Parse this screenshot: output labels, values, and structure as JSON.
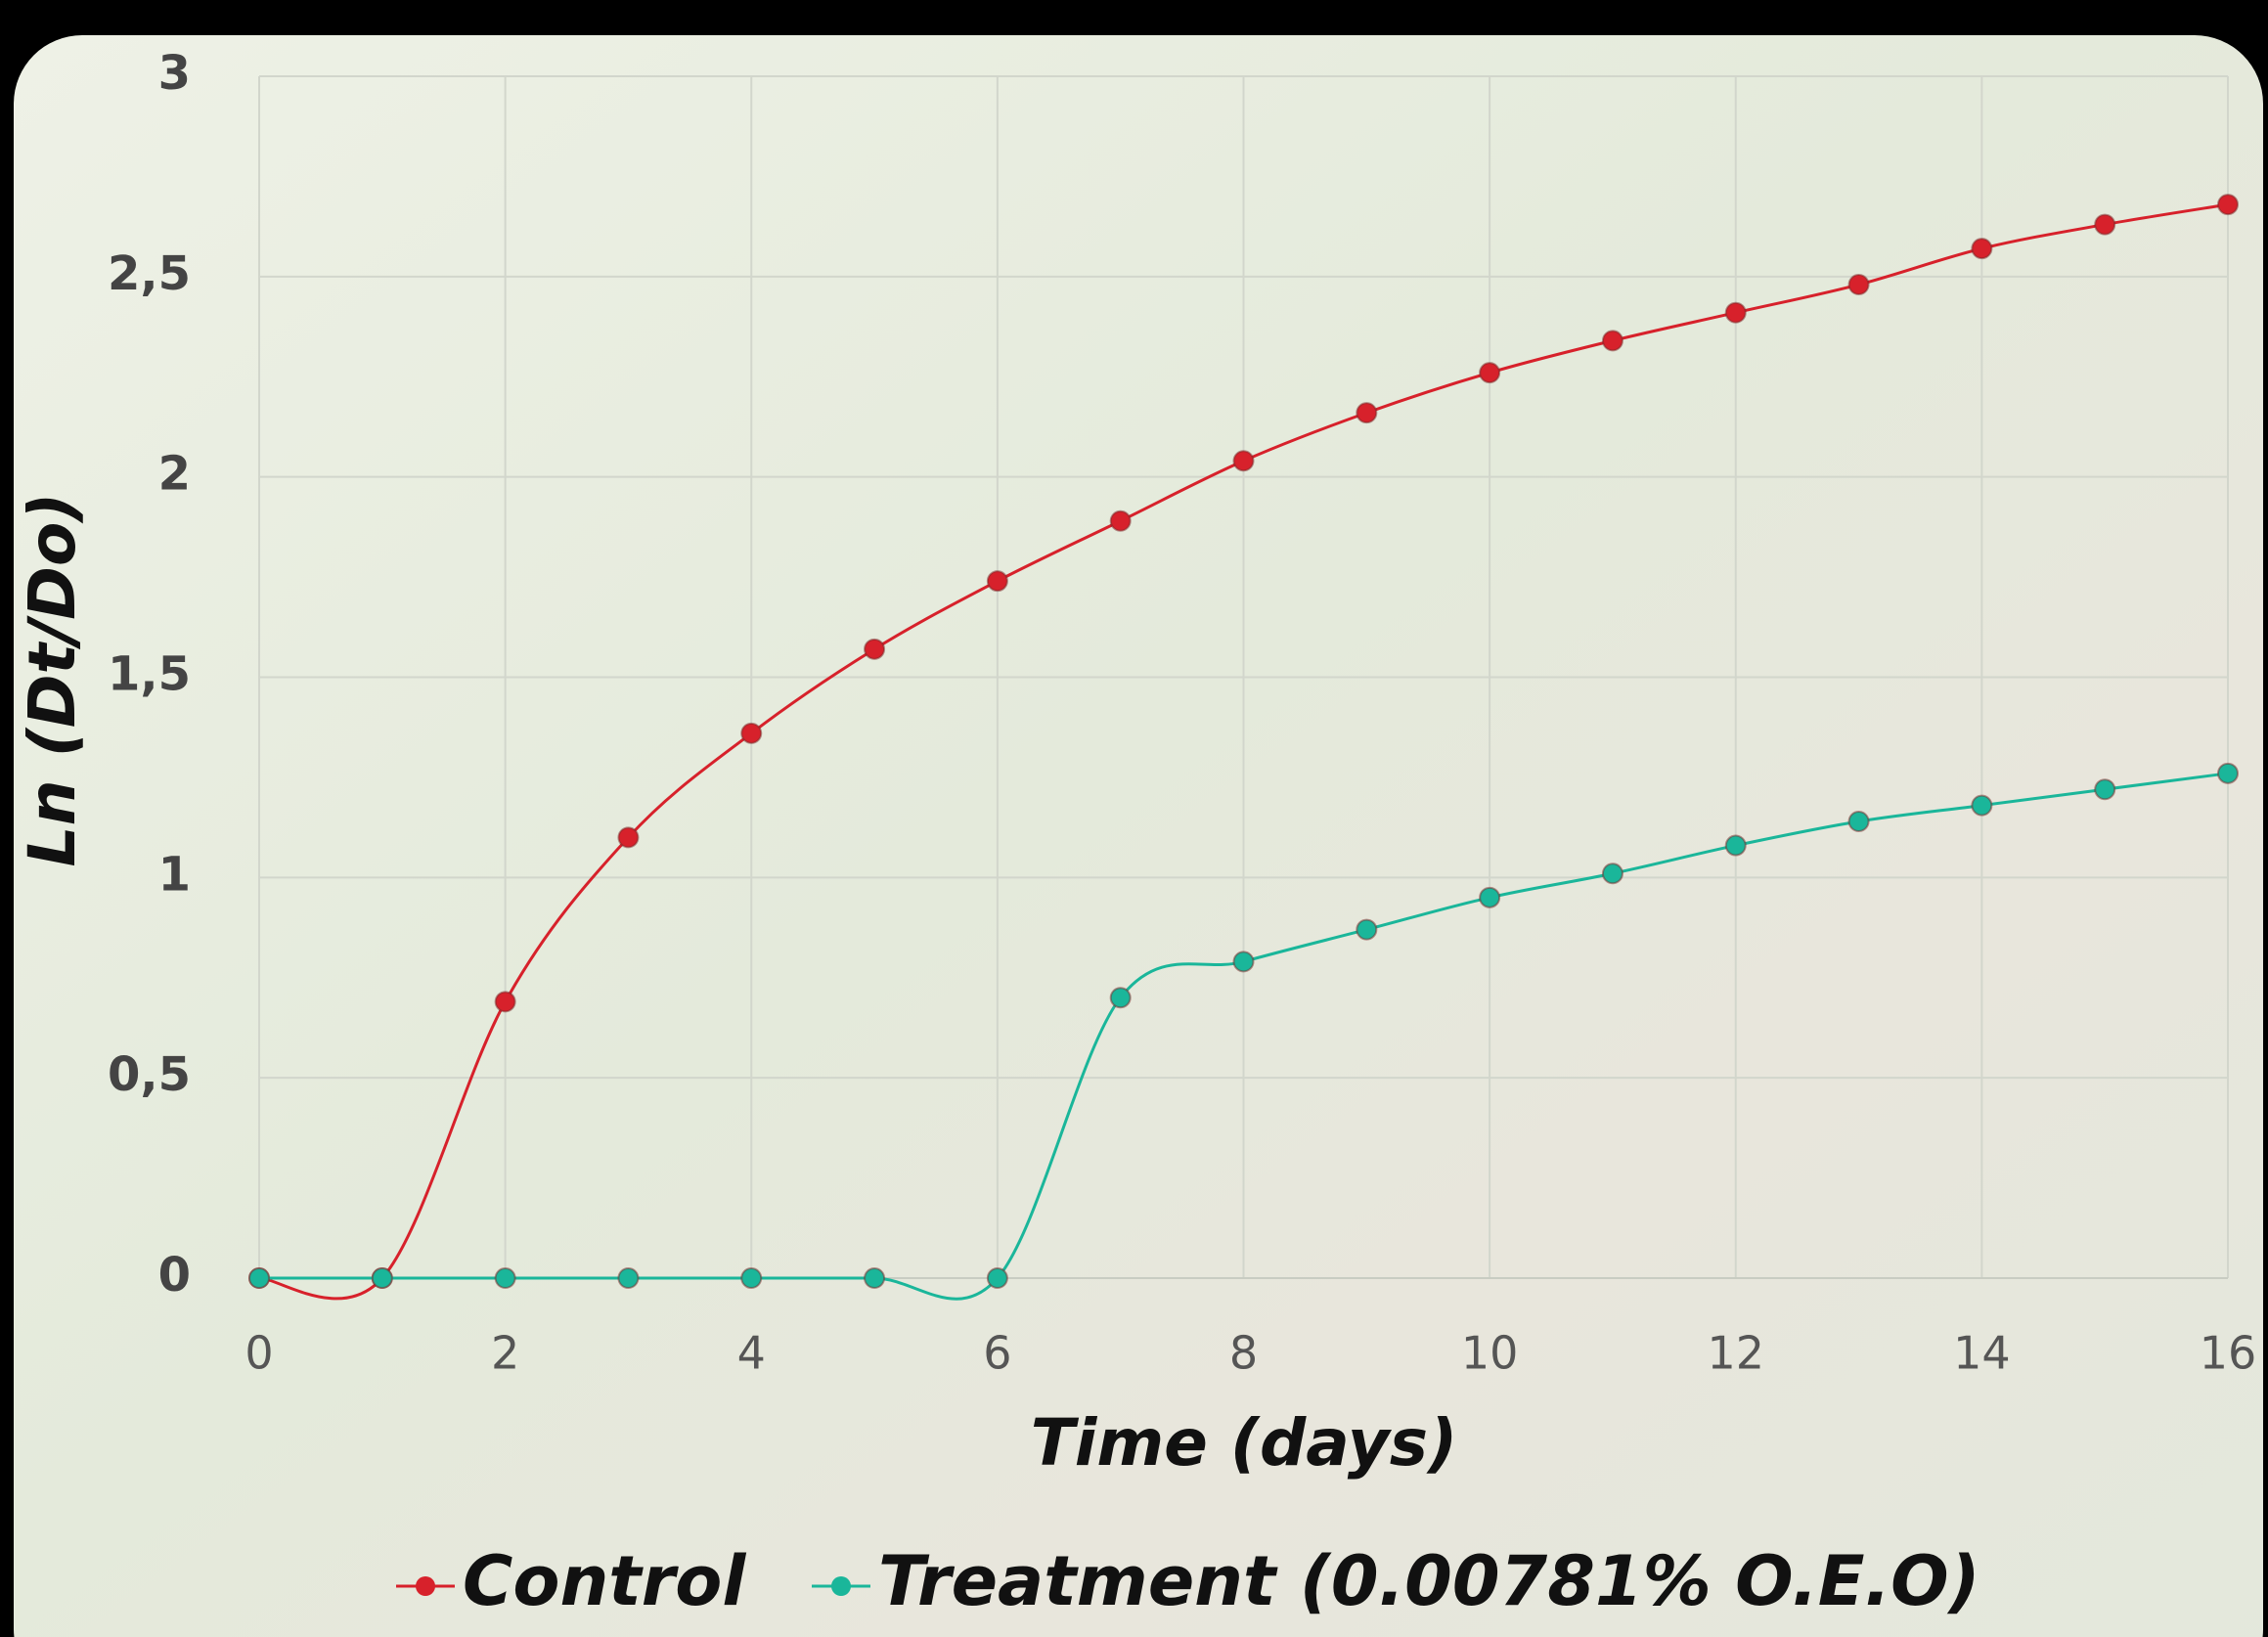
{
  "chart_data": {
    "type": "line",
    "x_label": "Time (days)",
    "y_label": "Ln (Dt/Do)",
    "x": [
      0,
      1,
      2,
      3,
      4,
      5,
      6,
      7,
      8,
      9,
      10,
      11,
      12,
      13,
      14,
      15,
      16
    ],
    "series": [
      {
        "name": "Control",
        "color": "#d7212b",
        "values": [
          0,
          0,
          0.69,
          1.1,
          1.36,
          1.57,
          1.74,
          1.89,
          2.04,
          2.16,
          2.26,
          2.34,
          2.41,
          2.48,
          2.57,
          2.63,
          2.68
        ]
      },
      {
        "name": "Treatment (0.00781% O.E.O)",
        "color": "#1ab69a",
        "values": [
          0,
          0,
          0,
          0,
          0,
          0,
          0,
          0.7,
          0.79,
          0.87,
          0.95,
          1.01,
          1.08,
          1.14,
          1.18,
          1.22,
          1.26
        ]
      }
    ],
    "xlim": [
      0,
      16
    ],
    "xticks": [
      0,
      2,
      4,
      6,
      8,
      10,
      12,
      14,
      16
    ],
    "ylim": [
      0,
      3
    ],
    "yticks": [
      0,
      {
        "value": 0.5,
        "label": "0,5"
      },
      1,
      {
        "value": 1.5,
        "label": "1,5"
      },
      2,
      {
        "value": 2.5,
        "label": "2,5"
      },
      3
    ],
    "grid": true,
    "legend": "bottom"
  }
}
